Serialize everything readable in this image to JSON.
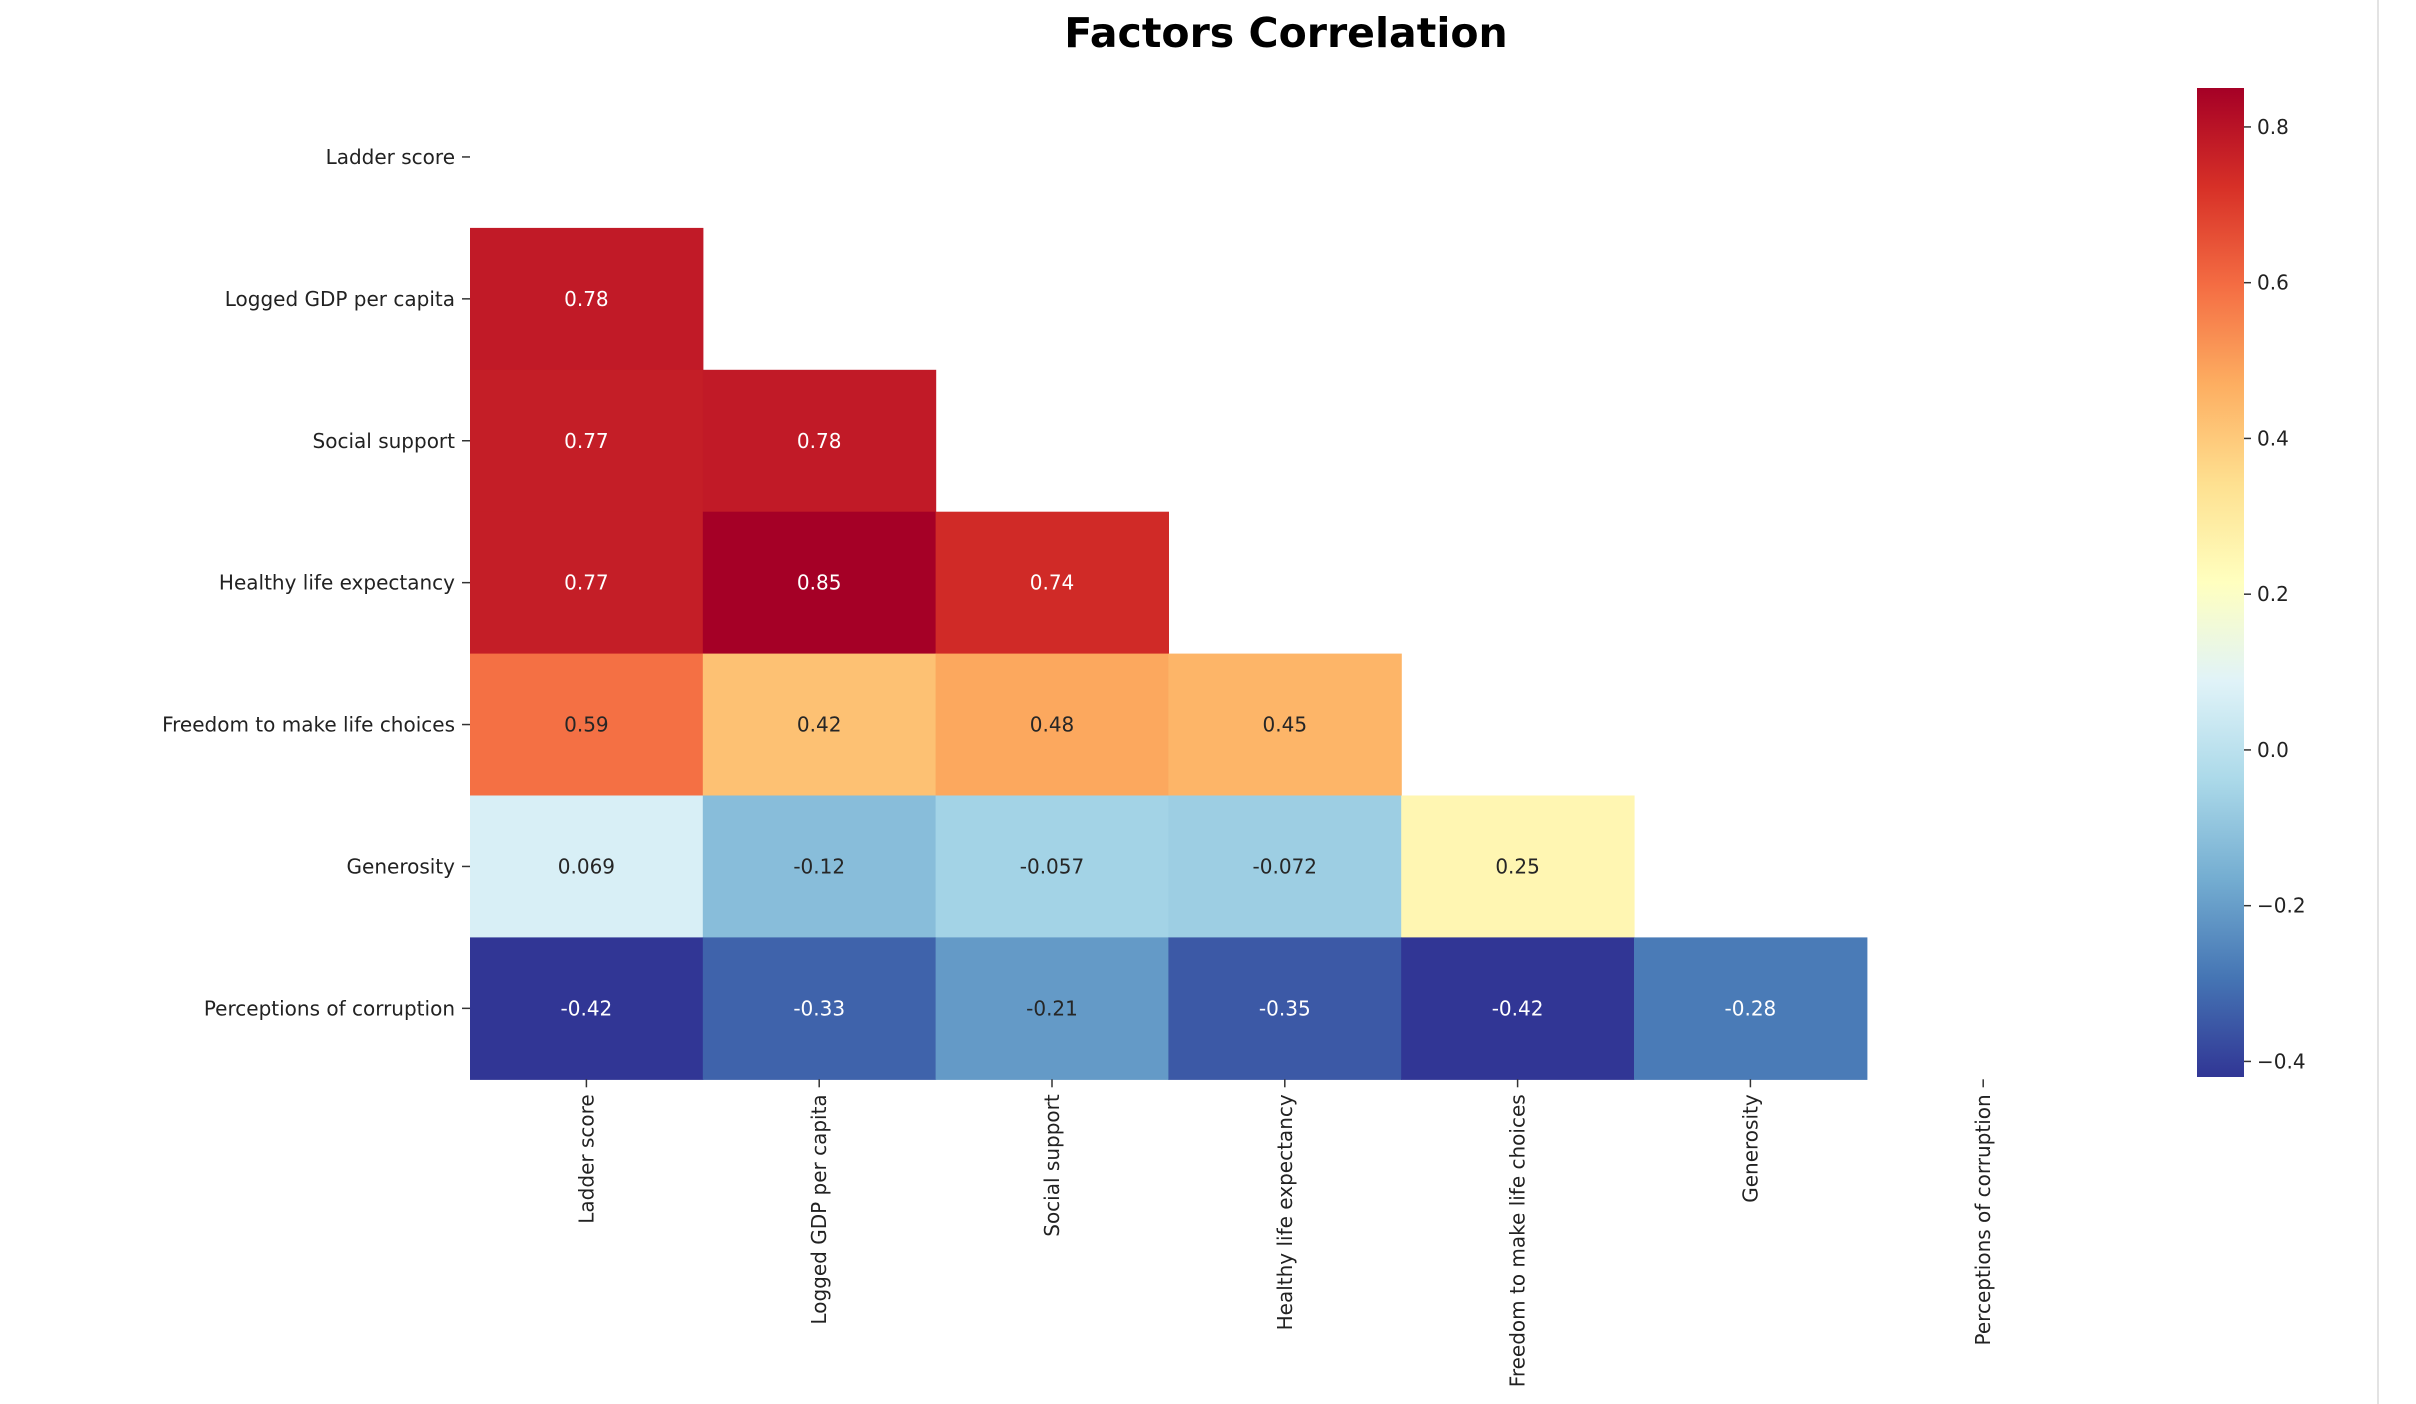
{
  "chart_data": {
    "type": "heatmap",
    "title": "Factors Correlation",
    "xlabel": "",
    "ylabel": "",
    "colormap": "RdYlBu_r",
    "mask": "upper-triangle-including-diagonal",
    "value_range": [
      -0.42,
      0.85
    ],
    "rows": [
      "Ladder score",
      "Logged GDP per capita",
      "Social support",
      "Healthy life expectancy",
      "Freedom to make life choices",
      "Generosity",
      "Perceptions of corruption"
    ],
    "columns": [
      "Ladder score",
      "Logged GDP per capita",
      "Social support",
      "Healthy life expectancy",
      "Freedom to make life choices",
      "Generosity",
      "Perceptions of corruption"
    ],
    "cells": [
      {
        "row": 1,
        "col": 0,
        "value": 0.78,
        "label": "0.78"
      },
      {
        "row": 2,
        "col": 0,
        "value": 0.77,
        "label": "0.77"
      },
      {
        "row": 2,
        "col": 1,
        "value": 0.78,
        "label": "0.78"
      },
      {
        "row": 3,
        "col": 0,
        "value": 0.77,
        "label": "0.77"
      },
      {
        "row": 3,
        "col": 1,
        "value": 0.85,
        "label": "0.85"
      },
      {
        "row": 3,
        "col": 2,
        "value": 0.74,
        "label": "0.74"
      },
      {
        "row": 4,
        "col": 0,
        "value": 0.59,
        "label": "0.59"
      },
      {
        "row": 4,
        "col": 1,
        "value": 0.42,
        "label": "0.42"
      },
      {
        "row": 4,
        "col": 2,
        "value": 0.48,
        "label": "0.48"
      },
      {
        "row": 4,
        "col": 3,
        "value": 0.45,
        "label": "0.45"
      },
      {
        "row": 5,
        "col": 0,
        "value": 0.069,
        "label": "0.069"
      },
      {
        "row": 5,
        "col": 1,
        "value": -0.12,
        "label": "-0.12"
      },
      {
        "row": 5,
        "col": 2,
        "value": -0.057,
        "label": "-0.057"
      },
      {
        "row": 5,
        "col": 3,
        "value": -0.072,
        "label": "-0.072"
      },
      {
        "row": 5,
        "col": 4,
        "value": 0.25,
        "label": "0.25"
      },
      {
        "row": 6,
        "col": 0,
        "value": -0.42,
        "label": "-0.42"
      },
      {
        "row": 6,
        "col": 1,
        "value": -0.33,
        "label": "-0.33"
      },
      {
        "row": 6,
        "col": 2,
        "value": -0.21,
        "label": "-0.21"
      },
      {
        "row": 6,
        "col": 3,
        "value": -0.35,
        "label": "-0.35"
      },
      {
        "row": 6,
        "col": 4,
        "value": -0.42,
        "label": "-0.42"
      },
      {
        "row": 6,
        "col": 5,
        "value": -0.28,
        "label": "-0.28"
      }
    ],
    "colorbar": {
      "ticks": [
        0.8,
        0.6,
        0.4,
        0.2,
        0.0,
        -0.2,
        -0.4
      ],
      "tick_labels": [
        "0.8",
        "0.6",
        "0.4",
        "0.2",
        "0.0",
        "−0.2",
        "−0.4"
      ]
    }
  }
}
